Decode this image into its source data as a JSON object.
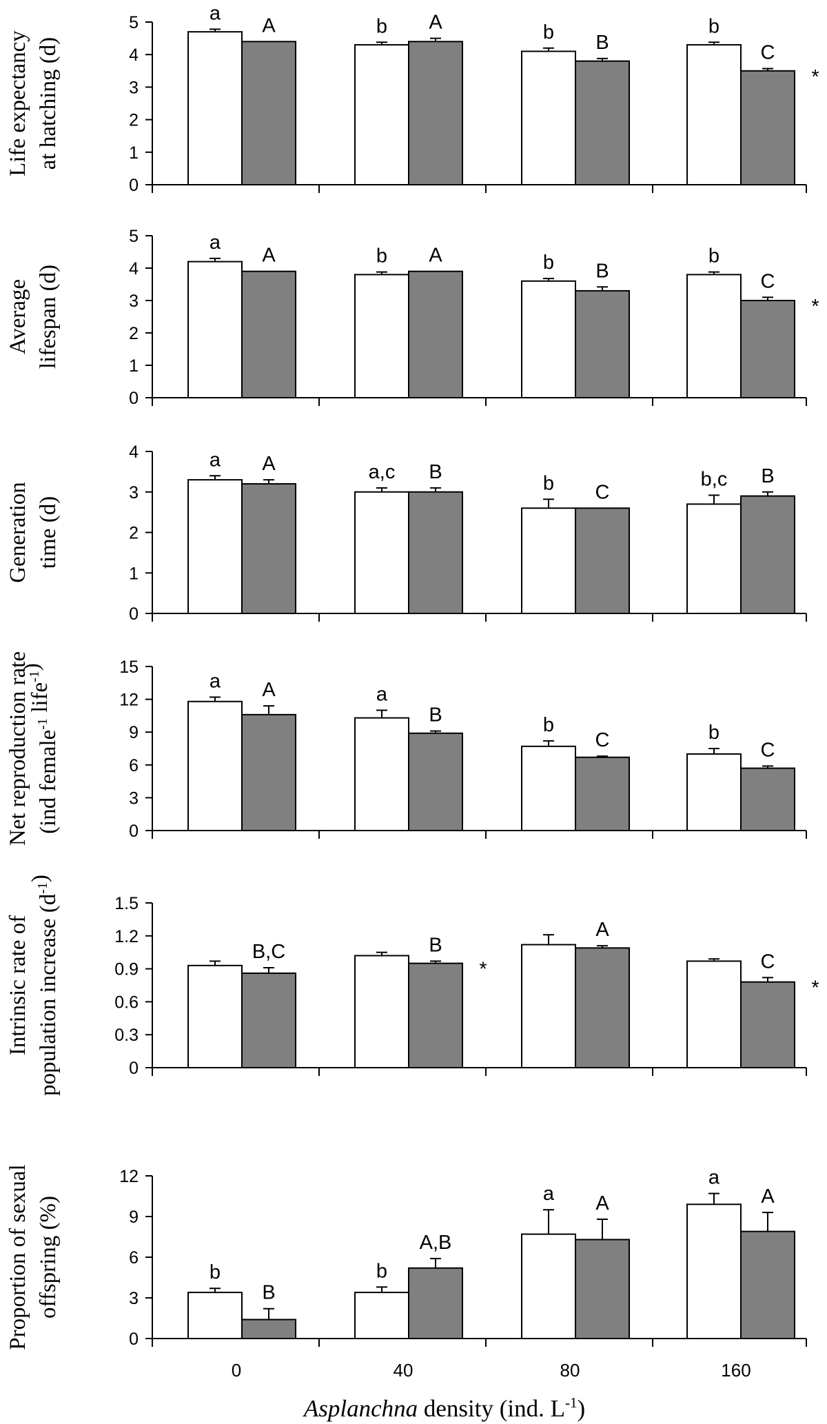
{
  "chart_data": {
    "type": "bar",
    "categories": [
      "0",
      "40",
      "80",
      "160"
    ],
    "xlabel": {
      "italic": "Asplanchna",
      "rest": " density (ind. L",
      "sup": "-1",
      "end": ")"
    },
    "colors": {
      "series_a": "#ffffff",
      "series_b": "#808080",
      "stroke": "#000000"
    },
    "panels": [
      {
        "ylabel_lines": [
          [
            {
              "t": "Life expectancy"
            }
          ],
          [
            {
              "t": "at hatching (d)"
            }
          ]
        ],
        "ylim": [
          0,
          5
        ],
        "yticks": [
          "0",
          "1",
          "2",
          "3",
          "4",
          "5"
        ],
        "series": [
          {
            "name": "white",
            "values": [
              4.7,
              4.3,
              4.1,
              4.3
            ],
            "errors": [
              0.08,
              0.08,
              0.1,
              0.08
            ],
            "labels": [
              "a",
              "b",
              "b",
              "b"
            ]
          },
          {
            "name": "grey",
            "values": [
              4.4,
              4.4,
              3.8,
              3.5
            ],
            "errors": [
              0,
              0.1,
              0.08,
              0.07
            ],
            "labels": [
              "A",
              "A",
              "B",
              "C"
            ]
          }
        ],
        "stars": [
          "",
          "",
          "",
          "*"
        ]
      },
      {
        "ylabel_lines": [
          [
            {
              "t": "Average"
            }
          ],
          [
            {
              "t": "lifespan (d)"
            }
          ]
        ],
        "ylim": [
          0,
          5
        ],
        "yticks": [
          "0",
          "1",
          "2",
          "3",
          "4",
          "5"
        ],
        "series": [
          {
            "name": "white",
            "values": [
              4.2,
              3.8,
              3.6,
              3.8
            ],
            "errors": [
              0.1,
              0.08,
              0.08,
              0.08
            ],
            "labels": [
              "a",
              "b",
              "b",
              "b"
            ]
          },
          {
            "name": "grey",
            "values": [
              3.9,
              3.9,
              3.3,
              3.0
            ],
            "errors": [
              0,
              0,
              0.12,
              0.1
            ],
            "labels": [
              "A",
              "A",
              "B",
              "C"
            ]
          }
        ],
        "stars": [
          "",
          "",
          "",
          "*"
        ]
      },
      {
        "ylabel_lines": [
          [
            {
              "t": "Generation"
            }
          ],
          [
            {
              "t": "time (d)"
            }
          ]
        ],
        "ylim": [
          0,
          4
        ],
        "yticks": [
          "0",
          "1",
          "2",
          "3",
          "4"
        ],
        "series": [
          {
            "name": "white",
            "values": [
              3.3,
              3.0,
              2.6,
              2.7
            ],
            "errors": [
              0.1,
              0.1,
              0.22,
              0.22
            ],
            "labels": [
              "a",
              "a,c",
              "b",
              "b,c"
            ]
          },
          {
            "name": "grey",
            "values": [
              3.2,
              3.0,
              2.6,
              2.9
            ],
            "errors": [
              0.1,
              0.1,
              0,
              0.1
            ],
            "labels": [
              "A",
              "B",
              "C",
              "B"
            ]
          }
        ],
        "stars": [
          "",
          "",
          "",
          ""
        ]
      },
      {
        "ylabel_lines": [
          [
            {
              "t": "Net reproduction rate"
            }
          ],
          [
            {
              "t": "(ind female"
            },
            {
              "t": "-1",
              "sup": true
            },
            {
              "t": " life"
            },
            {
              "t": "-1",
              "sup": true
            },
            {
              "t": ")"
            }
          ]
        ],
        "ylim": [
          0,
          15
        ],
        "yticks": [
          "0",
          "3",
          "6",
          "9",
          "12",
          "15"
        ],
        "series": [
          {
            "name": "white",
            "values": [
              11.8,
              10.3,
              7.7,
              7.0
            ],
            "errors": [
              0.4,
              0.7,
              0.5,
              0.5
            ],
            "labels": [
              "a",
              "a",
              "b",
              "b"
            ]
          },
          {
            "name": "grey",
            "values": [
              10.6,
              8.9,
              6.7,
              5.7
            ],
            "errors": [
              0.8,
              0.2,
              0.1,
              0.2
            ],
            "labels": [
              "A",
              "B",
              "C",
              "C"
            ]
          }
        ],
        "stars": [
          "",
          "",
          "",
          ""
        ]
      },
      {
        "ylabel_lines": [
          [
            {
              "t": "Intrinsic rate of"
            }
          ],
          [
            {
              "t": "population increase (d"
            },
            {
              "t": "-1",
              "sup": true
            },
            {
              "t": ")"
            }
          ]
        ],
        "ylim": [
          0,
          1.5
        ],
        "yticks": [
          "0",
          "0.3",
          "0.6",
          "0.9",
          "1.2",
          "1.5"
        ],
        "series": [
          {
            "name": "white",
            "values": [
              0.93,
              1.02,
              1.12,
              0.97
            ],
            "errors": [
              0.04,
              0.03,
              0.09,
              0.02
            ],
            "labels": [
              "",
              "",
              "",
              ""
            ]
          },
          {
            "name": "grey",
            "values": [
              0.86,
              0.95,
              1.09,
              0.78
            ],
            "errors": [
              0.05,
              0.02,
              0.02,
              0.04
            ],
            "labels": [
              "B,C",
              "B",
              "A",
              "C"
            ]
          }
        ],
        "stars": [
          "",
          "*",
          "",
          "*"
        ]
      },
      {
        "ylabel_lines": [
          [
            {
              "t": "Proportion of sexual"
            }
          ],
          [
            {
              "t": "offspring (%)"
            }
          ]
        ],
        "ylim": [
          0,
          12
        ],
        "yticks": [
          "0",
          "3",
          "6",
          "9",
          "12"
        ],
        "series": [
          {
            "name": "white",
            "values": [
              3.4,
              3.4,
              7.7,
              9.9
            ],
            "errors": [
              0.3,
              0.4,
              1.8,
              0.8
            ],
            "labels": [
              "b",
              "b",
              "a",
              "a"
            ]
          },
          {
            "name": "grey",
            "values": [
              1.4,
              5.2,
              7.3,
              7.9
            ],
            "errors": [
              0.8,
              0.7,
              1.5,
              1.4
            ],
            "labels": [
              "B",
              "A,B",
              "A",
              "A"
            ]
          }
        ],
        "stars": [
          "",
          "",
          "",
          ""
        ]
      }
    ]
  }
}
